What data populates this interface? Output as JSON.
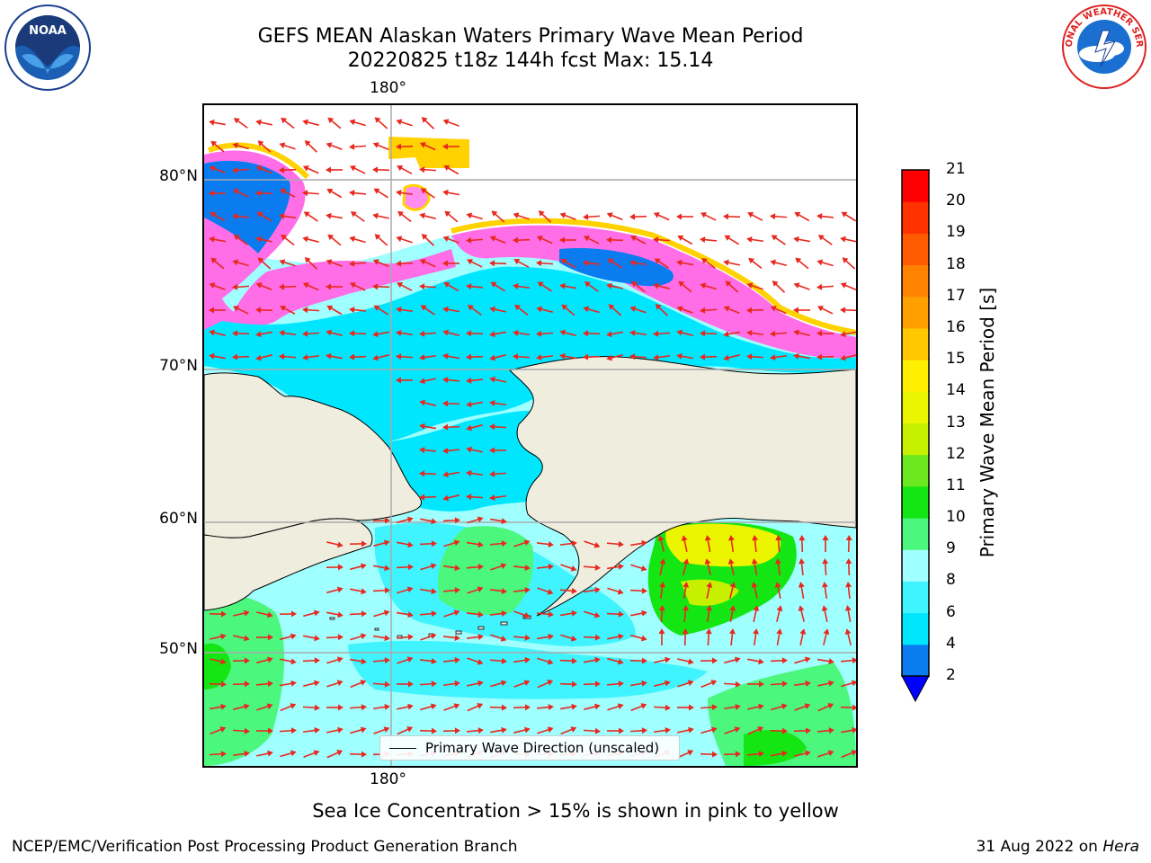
{
  "header": {
    "title_line1": "GEFS MEAN Alaskan Waters Primary Wave Mean Period",
    "title_line2": "20220825 t18z 144h fcst   Max: 15.14"
  },
  "logos": {
    "left": "NOAA",
    "right": "NATIONAL WEATHER SERVICE"
  },
  "map": {
    "lon_label_top": "180°",
    "lon_label_bottom": "180°",
    "lat_labels": [
      "80°N",
      "70°N",
      "60°N",
      "50°N"
    ],
    "legend": "Primary Wave Direction (unscaled)",
    "land_color": "#efedde",
    "arrow_color": "#e8281e"
  },
  "colorbar": {
    "title": "Primary Wave Mean Period [s]",
    "ticks": [
      "2",
      "4",
      "6",
      "8",
      "9",
      "10",
      "11",
      "12",
      "13",
      "14",
      "15",
      "16",
      "17",
      "18",
      "19",
      "20",
      "21"
    ],
    "colors": [
      "#0a7cf0",
      "#00e6ff",
      "#40f4ff",
      "#a0ffff",
      "#4cf77e",
      "#14e614",
      "#6ce820",
      "#c6f000",
      "#ebf500",
      "#fff000",
      "#ffc800",
      "#ffa000",
      "#ff8200",
      "#ff5a00",
      "#ff3200",
      "#ff0000"
    ],
    "extend_color": "#0000ff"
  },
  "caption": "Sea Ice Concentration > 15% is shown in pink to yellow",
  "footer": {
    "left": "NCEP/EMC/Verification Post Processing Product Generation Branch",
    "date": "31 Aug 2022 on ",
    "machine": "Hera"
  }
}
